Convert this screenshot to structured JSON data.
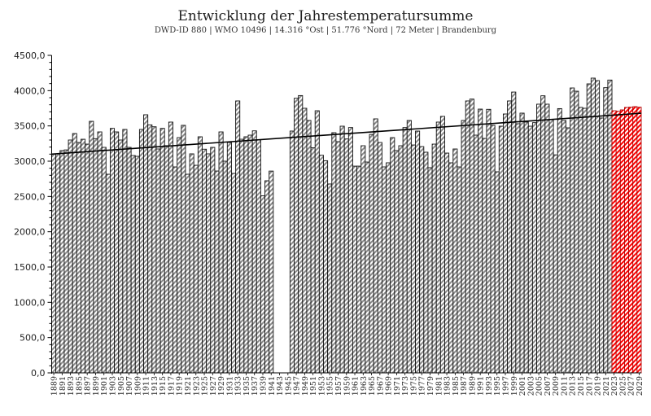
{
  "chart_data": {
    "type": "bar",
    "title": "Entwicklung der Jahrestemperatursumme",
    "subtitle": "DWD-ID 880  | WMO 10496  | 14.316 °Ost | 51.776 °Nord | 72 Meter | Brandenburg",
    "xlabel": "",
    "ylabel": "",
    "ylim": [
      0,
      4500
    ],
    "y_ticks": [
      "0,0",
      "500,0",
      "1000,0",
      "1500,0",
      "2000,0",
      "2500,0",
      "3000,0",
      "3500,0",
      "4000,0",
      "4500,0"
    ],
    "x_start": 1889,
    "x_end": 2029,
    "forecast_from": 2023,
    "values": [
      3104,
      3104,
      3150,
      3160,
      3300,
      3392,
      3265,
      3311,
      3242,
      3565,
      3319,
      3415,
      3196,
      2815,
      3465,
      3415,
      3300,
      3450,
      3196,
      3080,
      3069,
      3450,
      3658,
      3515,
      3488,
      3173,
      3465,
      3220,
      3554,
      2919,
      3334,
      3508,
      2815,
      3104,
      2942,
      3346,
      3170,
      3104,
      3196,
      2861,
      3415,
      3000,
      3265,
      2827,
      3854,
      3311,
      3346,
      3369,
      3430,
      3300,
      2510,
      2723,
      2860,
      null,
      null,
      null,
      null,
      3427,
      3892,
      3930,
      3750,
      3577,
      3190,
      3715,
      3084,
      3007,
      2677,
      3404,
      3277,
      3496,
      3315,
      3477,
      2930,
      2930,
      3219,
      2988,
      3380,
      3600,
      3265,
      2919,
      2977,
      3334,
      3150,
      3219,
      3477,
      3577,
      3230,
      3427,
      3207,
      3127,
      2908,
      3242,
      3554,
      3635,
      3115,
      2977,
      3173,
      2919,
      3577,
      3854,
      3880,
      3369,
      3738,
      3323,
      3735,
      3508,
      2850,
      3496,
      3669,
      3854,
      3980,
      3531,
      3681,
      3554,
      3496,
      3546,
      3808,
      3927,
      3808,
      3592,
      3090,
      3745,
      3577,
      3473,
      4038,
      3992,
      3762,
      3750,
      4096,
      4177,
      4142,
      3612,
      4042,
      4150,
      3715,
      3708,
      3727,
      3762,
      3765,
      3773,
      3765
    ],
    "trend": {
      "start_value": 3100,
      "end_value": 3680
    },
    "grid": false,
    "legend": "none",
    "colors": {
      "bar_stripe": "#8a8a8a",
      "bar_outline": "#111111",
      "forecast_stripe": "#ff0000",
      "forecast_outline": "#b00000",
      "trend": "#000000"
    }
  }
}
